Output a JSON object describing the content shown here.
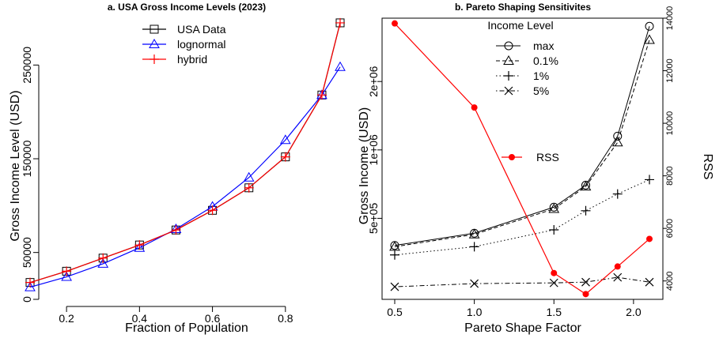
{
  "chart_data": [
    {
      "type": "line",
      "title": "a. USA Gross Income Levels (2023)",
      "xlabel": "Fraction of Population",
      "ylabel": "Gross Income Level (USD)",
      "xlim": [
        0.1,
        0.95
      ],
      "ylim": [
        0,
        300000
      ],
      "xticks": [
        0.2,
        0.4,
        0.6,
        0.8
      ],
      "xtick_labels": [
        "0.2",
        "0.4",
        "0.6",
        "0.8"
      ],
      "yticks": [
        0,
        50000,
        150000,
        250000
      ],
      "ytick_labels": [
        "0",
        "50000",
        "150000",
        "250000"
      ],
      "legend_position": "top-center",
      "x": [
        0.1,
        0.2,
        0.3,
        0.4,
        0.5,
        0.6,
        0.7,
        0.8,
        0.9,
        0.95
      ],
      "series": [
        {
          "name": "USA Data",
          "marker": "square",
          "color": "#000000",
          "values": [
            18000,
            30000,
            44000,
            58000,
            74000,
            95000,
            119000,
            152000,
            218000,
            295000
          ]
        },
        {
          "name": "lognormal",
          "marker": "triangle",
          "color": "#0000FF",
          "values": [
            13000,
            24000,
            38000,
            55000,
            75000,
            99000,
            130000,
            170000,
            218000,
            248000
          ]
        },
        {
          "name": "hybrid",
          "marker": "plus",
          "color": "#FF0000",
          "values": [
            18000,
            30000,
            44000,
            58000,
            74000,
            95000,
            119000,
            152000,
            218000,
            295000
          ]
        }
      ]
    },
    {
      "type": "line",
      "title": "b. Pareto Shaping Sensitivites",
      "xlabel": "Pareto Shape Factor",
      "ylabel": "Gross Income (USD)",
      "ylabel_right": "RSS",
      "y_scale": "log",
      "xlim": [
        0.5,
        2.1
      ],
      "ylim": [
        220000,
        3800000
      ],
      "xticks": [
        0.5,
        1.0,
        1.5,
        2.0
      ],
      "xtick_labels": [
        "0.5",
        "1.0",
        "1.5",
        "2.0"
      ],
      "yticks": [
        500000,
        1000000,
        2000000
      ],
      "ytick_labels": [
        "5e+05",
        "1e+06",
        "2e+06"
      ],
      "y2lim": [
        3300,
        14000
      ],
      "y2ticks": [
        4000,
        6000,
        8000,
        10000,
        12000,
        14000
      ],
      "y2tick_labels": [
        "4000",
        "6000",
        "8000",
        "10000",
        "12000",
        "14000"
      ],
      "legend_title": "Income Level",
      "legend_position": "top-center",
      "x": [
        0.5,
        1.0,
        1.5,
        1.7,
        1.9,
        2.1
      ],
      "series": [
        {
          "name": "max",
          "marker": "circle",
          "dash": "solid",
          "color": "#000000",
          "values": [
            380000,
            430000,
            560000,
            700000,
            1150000,
            3500000
          ]
        },
        {
          "name": "0.1%",
          "marker": "triangle",
          "dash": "dashed",
          "color": "#000000",
          "values": [
            375000,
            425000,
            550000,
            690000,
            1080000,
            3050000
          ]
        },
        {
          "name": "1%",
          "marker": "plus",
          "dash": "dotted",
          "color": "#000000",
          "values": [
            345000,
            375000,
            445000,
            540000,
            640000,
            740000
          ]
        },
        {
          "name": "5%",
          "marker": "cross",
          "dash": "dotdash",
          "color": "#000000",
          "values": [
            250000,
            258000,
            260000,
            262000,
            275000,
            262000
          ]
        }
      ],
      "rss_series": {
        "name": "RSS",
        "marker": "dot",
        "color": "#FF0000",
        "values": [
          13800,
          10600,
          4300,
          3500,
          4550,
          5600
        ]
      }
    }
  ]
}
